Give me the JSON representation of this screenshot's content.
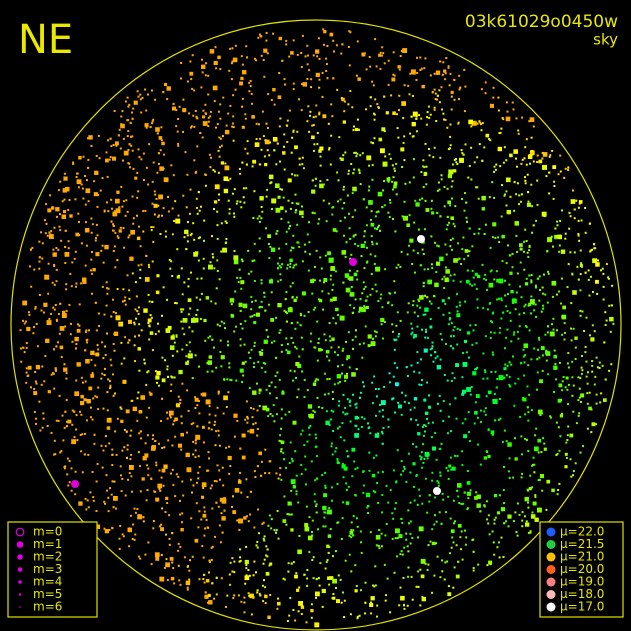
{
  "header": {
    "direction": "NE",
    "image_id": "03k61029o0450w",
    "mode": "sky"
  },
  "magnitude_legend": {
    "items": [
      "m=0",
      "m=1",
      "m=2",
      "m=3",
      "m=4",
      "m=5",
      "m=6"
    ],
    "color": "#e000e0"
  },
  "brightness_legend": {
    "items": [
      {
        "label": "μ=22.0",
        "color": "#1e5cff"
      },
      {
        "label": "μ=21.5",
        "color": "#20d040"
      },
      {
        "label": "μ=21.0",
        "color": "#ffc000"
      },
      {
        "label": "μ=20.0",
        "color": "#ff6020"
      },
      {
        "label": "μ=19.0",
        "color": "#ff8080"
      },
      {
        "label": "μ=18.0",
        "color": "#ffb8b8"
      },
      {
        "label": "μ=17.0",
        "color": "#ffffff"
      }
    ]
  }
}
